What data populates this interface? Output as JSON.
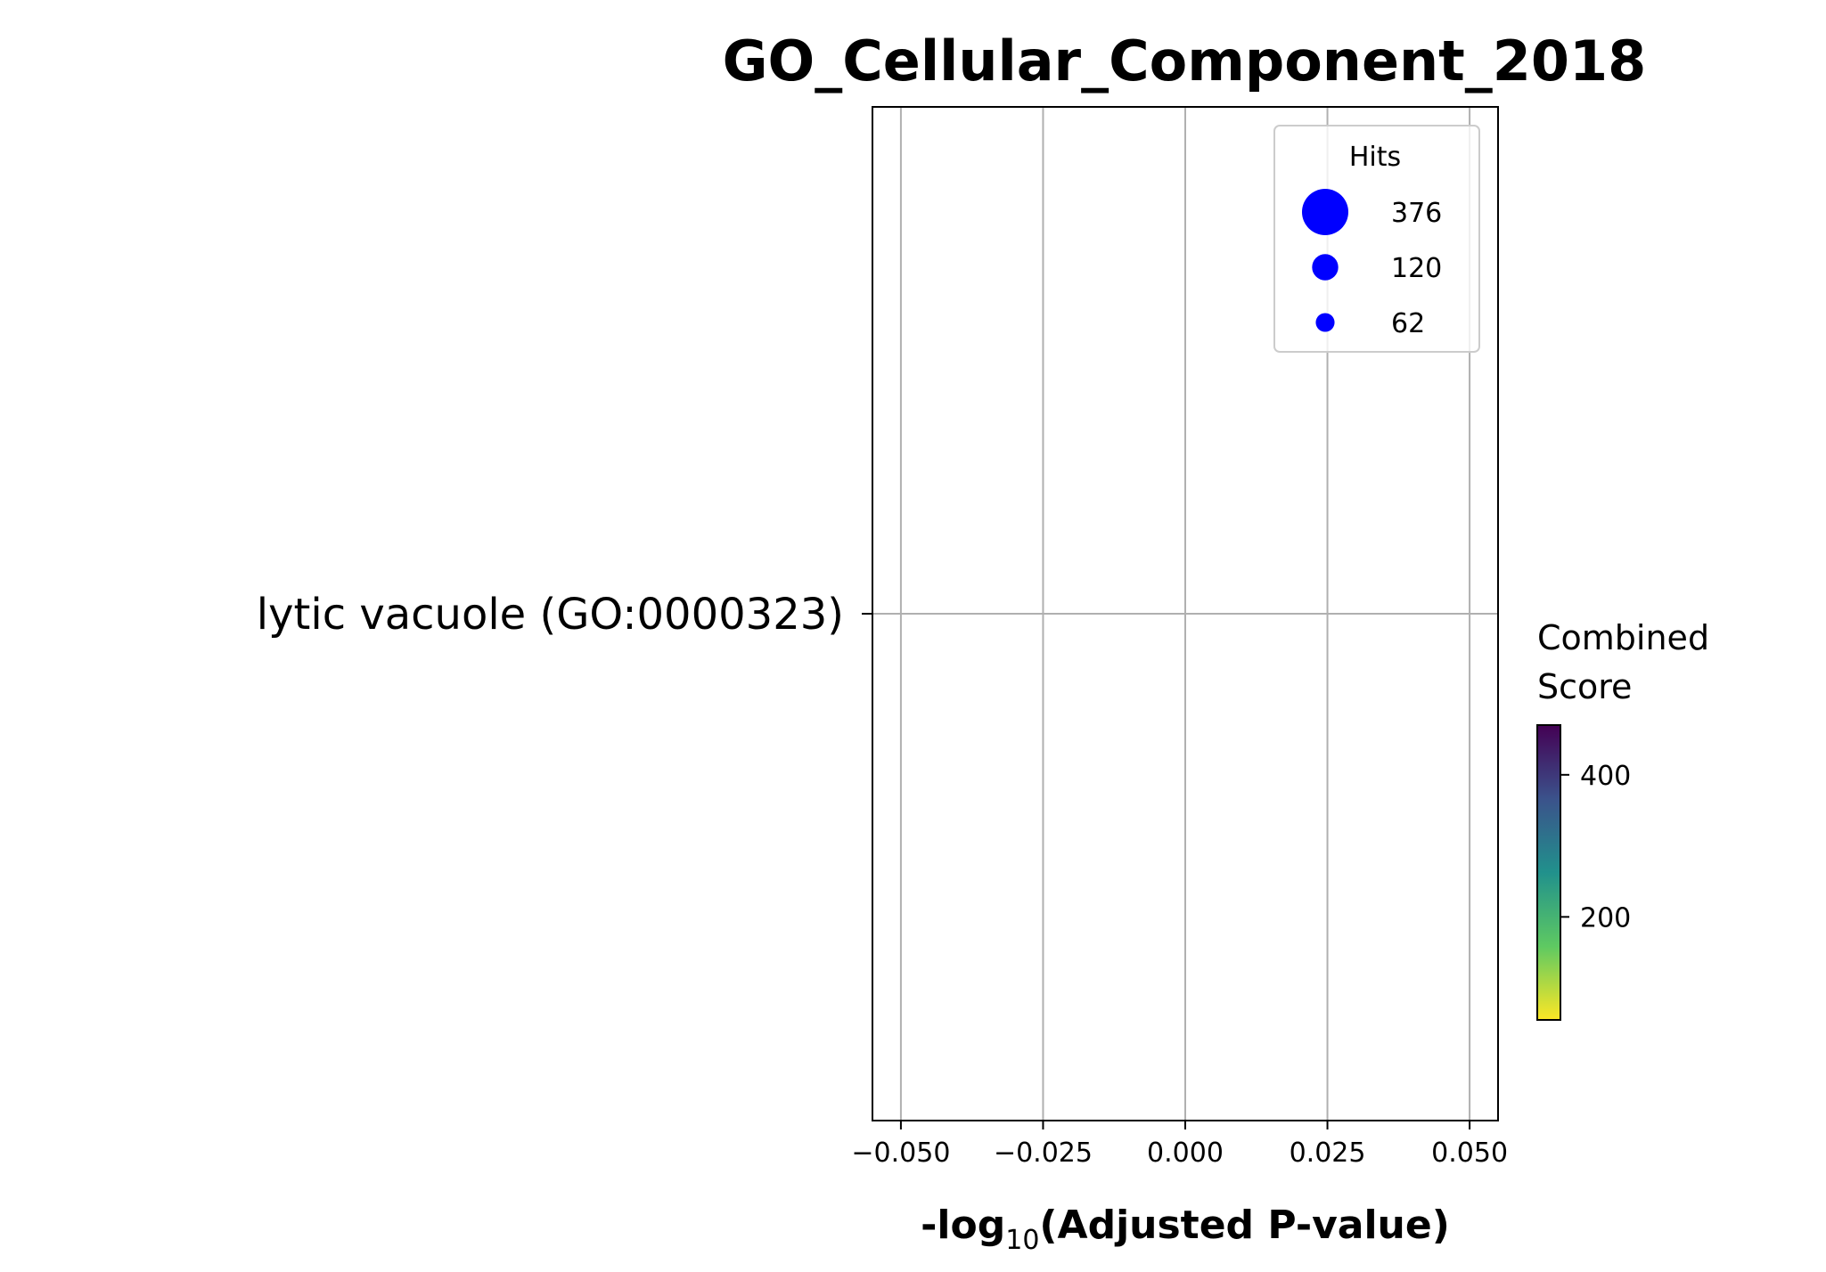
{
  "chart_data": {
    "type": "scatter",
    "title": "GO_Cellular_Component_2018",
    "xlabel_prefix": "-log",
    "xlabel_subscript": "10",
    "xlabel_suffix": "(Adjusted P-value)",
    "xlim": [
      -0.055,
      0.055
    ],
    "xticks": [
      -0.05,
      -0.025,
      0.0,
      0.025,
      0.05
    ],
    "xtick_labels": [
      "−0.050",
      "−0.025",
      "0.000",
      "0.025",
      "0.050"
    ],
    "categories": [
      "lytic vacuole (GO:0000323)"
    ],
    "points": [],
    "grid": true,
    "legend": {
      "title": "Hits",
      "placement": "upper right",
      "entries": [
        {
          "label": "376",
          "hits": 376
        },
        {
          "label": "120",
          "hits": 120
        },
        {
          "label": "62",
          "hits": 62
        }
      ],
      "marker_color": "#0000ff"
    },
    "colorbar": {
      "title_lines": [
        "Combined",
        "Score"
      ],
      "colormap": "viridis_r",
      "range": [
        55,
        470
      ],
      "ticks": [
        200,
        400
      ],
      "tick_labels": [
        "200",
        "400"
      ],
      "colors": [
        "#fde725",
        "#5ec962",
        "#21918c",
        "#3b528b",
        "#440154"
      ]
    }
  }
}
